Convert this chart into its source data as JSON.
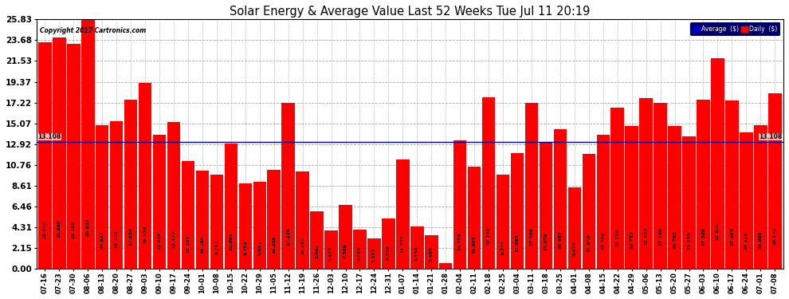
{
  "title": "Solar Energy & Average Value Last 52 Weeks Tue Jul 11 20:19",
  "copyright": "Copyright 2017 Cartronics.com",
  "bar_color": "#FF0000",
  "average_line_color": "#000099",
  "average_value": 13.108,
  "yticks": [
    0.0,
    2.15,
    4.31,
    6.46,
    8.61,
    10.76,
    12.92,
    15.07,
    17.22,
    19.37,
    21.53,
    23.68,
    25.83
  ],
  "categories": [
    "07-16",
    "07-23",
    "07-30",
    "08-06",
    "08-13",
    "08-20",
    "08-27",
    "09-03",
    "09-10",
    "09-17",
    "09-24",
    "10-01",
    "10-08",
    "10-15",
    "10-22",
    "10-29",
    "11-05",
    "11-12",
    "11-19",
    "11-26",
    "12-03",
    "12-10",
    "12-17",
    "12-24",
    "12-31",
    "01-07",
    "01-14",
    "01-21",
    "01-28",
    "02-04",
    "02-11",
    "02-18",
    "02-25",
    "03-04",
    "03-11",
    "03-18",
    "03-25",
    "04-01",
    "04-08",
    "04-15",
    "04-22",
    "04-29",
    "05-06",
    "05-13",
    "05-20",
    "05-27",
    "06-03",
    "06-10",
    "06-17",
    "06-24",
    "07-01",
    "07-08"
  ],
  "values": [
    23.5,
    23.98,
    23.285,
    25.831,
    14.837,
    15.295,
    17.552,
    19.236,
    13.866,
    15.171,
    11.163,
    10.185,
    9.747,
    12.993,
    8.792,
    9.031,
    10.268,
    17.226,
    10.069,
    5.961,
    3.975,
    6.569,
    4.074,
    3.111,
    5.21,
    11.335,
    4.354,
    3.445,
    0.554,
    13.276,
    10.605,
    17.76,
    9.7,
    11.965,
    17.206,
    13.029,
    14.497,
    8.436,
    11.916,
    13.882,
    16.72,
    14.753,
    17.677,
    17.149,
    14.753,
    13.718,
    17.509,
    21.809,
    17.465,
    14.126,
    14.908,
    18.14
  ],
  "background_color": "#FFFFFF",
  "grid_color": "#AAAAAA",
  "legend_avg_color": "#0000CC",
  "legend_daily_color": "#FF0000",
  "ylim": [
    0,
    25.83
  ],
  "fig_width": 9.9,
  "fig_height": 3.75
}
